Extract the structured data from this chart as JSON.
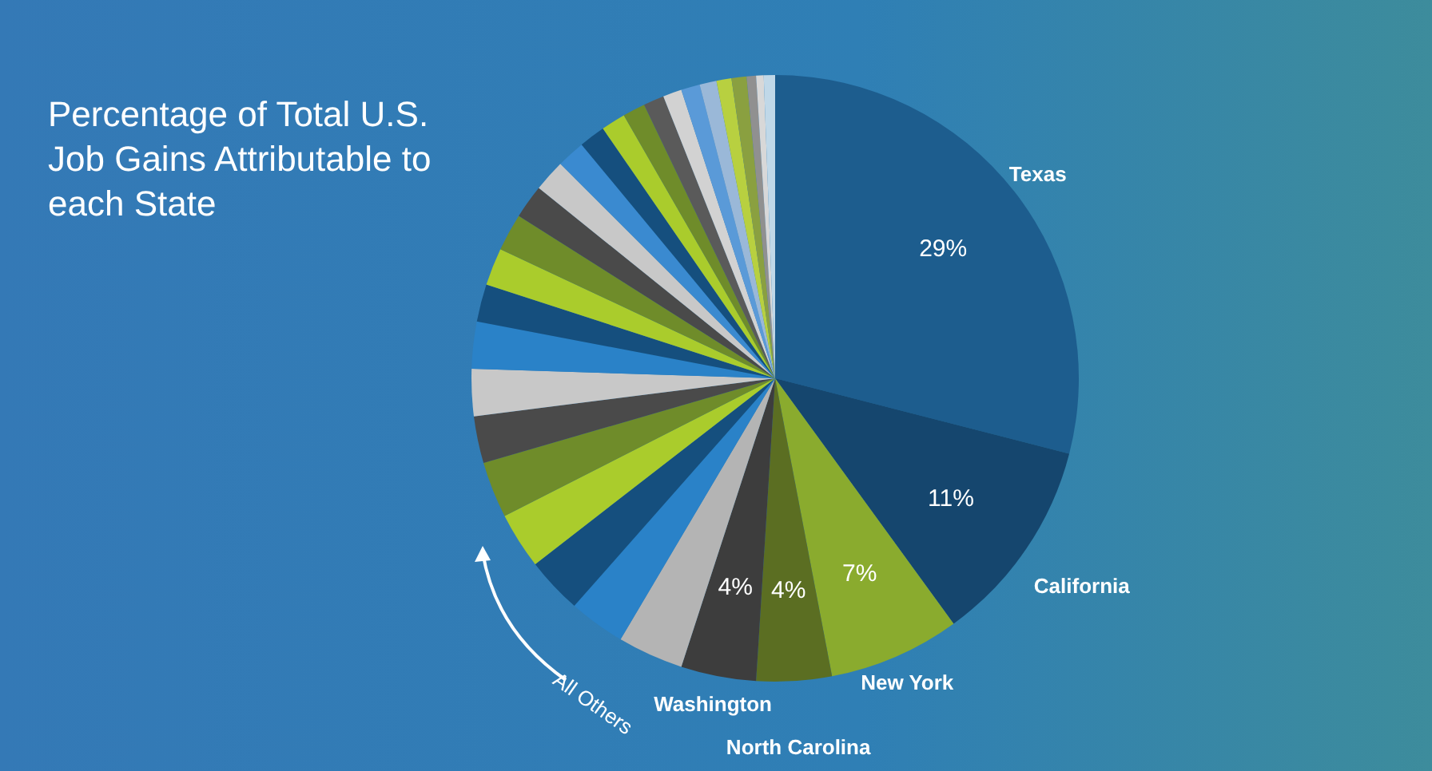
{
  "chart_data": {
    "type": "pie",
    "title": "Percentage of Total U.S. Job Gains Attributable to each State",
    "categories": [
      "Texas",
      "California",
      "New York",
      "North Carolina",
      "Washington",
      null,
      null,
      null,
      null,
      null,
      null,
      null,
      null,
      null,
      null,
      null,
      null,
      null,
      null,
      null,
      null,
      null,
      null,
      null,
      null,
      null,
      null,
      null,
      null,
      null,
      null
    ],
    "values": [
      29,
      11,
      7,
      4,
      4,
      3.5,
      3,
      3,
      3,
      3,
      2.5,
      2.5,
      2.5,
      2,
      2,
      2,
      1.8,
      1.7,
      1.5,
      1.4,
      1.3,
      1.2,
      1.1,
      1,
      1,
      0.9,
      0.8,
      0.8,
      0.5,
      0.4,
      0.6
    ],
    "colors": [
      "#1d5d8e",
      "#15466e",
      "#8aab2e",
      "#5b6e22",
      "#3d3d3d",
      "#b4b4b4",
      "#2a82c8",
      "#154f7e",
      "#aacc2c",
      "#6f8c2a",
      "#4a4a4a",
      "#c8c8c8",
      "#2a82c8",
      "#154f7e",
      "#aacc2c",
      "#6f8c2a",
      "#4a4a4a",
      "#c8c8c8",
      "#3a8ad0",
      "#154f7e",
      "#aacc2c",
      "#6f8c2a",
      "#5a5a5a",
      "#d2d2d2",
      "#5a9ad8",
      "#9ab8d8",
      "#b8d040",
      "#8aa040",
      "#909090",
      "#d8d8d8",
      "#c0d8e8"
    ],
    "value_labels": [
      "29%",
      "11%",
      "7%",
      "4%",
      "4%",
      null,
      null,
      null,
      null,
      null,
      null,
      null,
      null,
      null,
      null,
      null,
      null,
      null,
      null,
      null,
      null,
      null,
      null,
      null,
      null,
      null,
      null,
      null,
      null,
      null,
      null
    ],
    "annotations": [
      "All Others"
    ]
  }
}
